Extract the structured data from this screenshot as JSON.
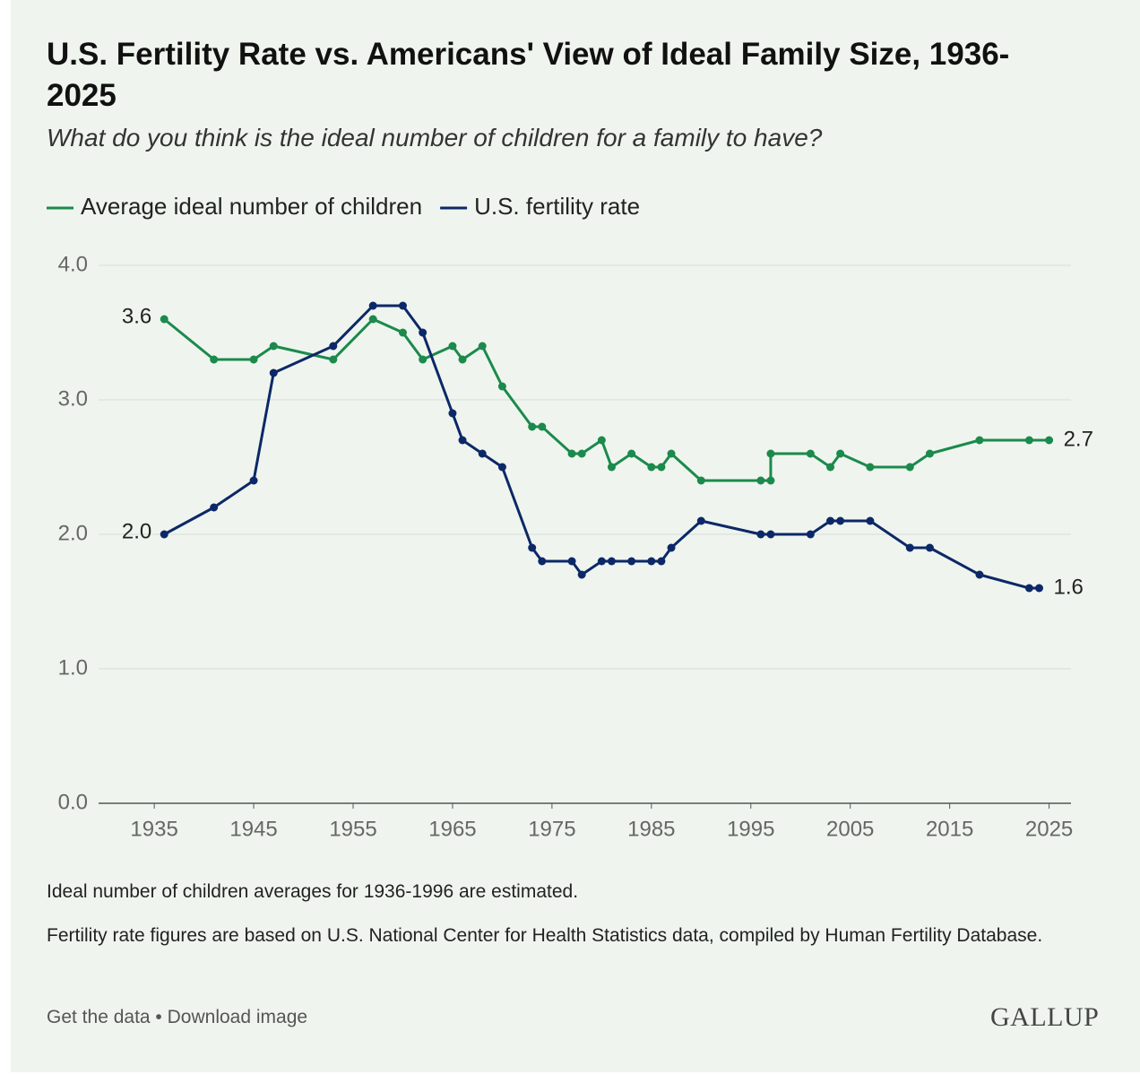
{
  "chart_data": {
    "type": "line",
    "title": "U.S. Fertility Rate vs. Americans' View of Ideal Family Size, 1936-2025",
    "subtitle": "What do you think is the ideal number of children for a family to have?",
    "series": [
      {
        "name": "Average ideal number of children",
        "color": "#1b8a4c",
        "x": [
          1936,
          1941,
          1945,
          1947,
          1953,
          1957,
          1960,
          1962,
          1965,
          1966,
          1968,
          1970,
          1973,
          1974,
          1977,
          1978,
          1980,
          1981,
          1983,
          1985,
          1986,
          1987,
          1990,
          1996,
          1997,
          1997,
          2001,
          2003,
          2004,
          2007,
          2011,
          2013,
          2018,
          2023,
          2025
        ],
        "values": [
          3.6,
          3.3,
          3.3,
          3.4,
          3.3,
          3.6,
          3.5,
          3.3,
          3.4,
          3.3,
          3.4,
          3.1,
          2.8,
          2.8,
          2.6,
          2.6,
          2.7,
          2.5,
          2.6,
          2.5,
          2.5,
          2.6,
          2.4,
          2.4,
          2.4,
          2.6,
          2.6,
          2.5,
          2.6,
          2.5,
          2.5,
          2.6,
          2.7,
          2.7,
          2.7
        ],
        "value_labels": [
          "3.6",
          null,
          null,
          null,
          null,
          null,
          null,
          null,
          null,
          null,
          null,
          null,
          null,
          null,
          null,
          null,
          null,
          null,
          null,
          null,
          null,
          null,
          null,
          null,
          null,
          null,
          null,
          null,
          null,
          null,
          null,
          null,
          null,
          null,
          "2.7"
        ]
      },
      {
        "name": "U.S. fertility rate",
        "color": "#0c2868",
        "x": [
          1936,
          1941,
          1945,
          1947,
          1953,
          1957,
          1960,
          1962,
          1965,
          1966,
          1968,
          1970,
          1973,
          1974,
          1977,
          1978,
          1980,
          1981,
          1983,
          1985,
          1986,
          1987,
          1990,
          1996,
          1997,
          2001,
          2003,
          2004,
          2007,
          2011,
          2013,
          2018,
          2023,
          2024
        ],
        "values": [
          2.0,
          2.2,
          2.4,
          3.2,
          3.4,
          3.7,
          3.7,
          3.5,
          2.9,
          2.7,
          2.6,
          2.5,
          1.9,
          1.8,
          1.8,
          1.7,
          1.8,
          1.8,
          1.8,
          1.8,
          1.8,
          1.9,
          2.1,
          2.0,
          2.0,
          2.0,
          2.1,
          2.1,
          2.1,
          1.9,
          1.9,
          1.7,
          1.6,
          1.6
        ],
        "value_labels": [
          "2.0",
          null,
          null,
          null,
          null,
          null,
          null,
          null,
          null,
          null,
          null,
          null,
          null,
          null,
          null,
          null,
          null,
          null,
          null,
          null,
          null,
          null,
          null,
          null,
          null,
          null,
          null,
          null,
          null,
          null,
          null,
          null,
          null,
          "1.6"
        ]
      }
    ],
    "xlim": [
      1929.4,
      2027.2
    ],
    "xticks": [
      1935,
      1945,
      1955,
      1965,
      1975,
      1985,
      1995,
      2005,
      2015,
      2025
    ],
    "ylim": [
      0,
      4
    ],
    "yticks": [
      {
        "value": 0,
        "label": "0.0"
      },
      {
        "value": 1,
        "label": "1.0"
      },
      {
        "value": 2,
        "label": "2.0"
      },
      {
        "value": 3,
        "label": "3.0"
      },
      {
        "value": 4,
        "label": "4.0"
      }
    ],
    "grid": true,
    "notes": [
      "Ideal number of children averages for 1936-1996 are estimated.",
      "Fertility rate figures are based on U.S. National Center for Health Statistics data, compiled by Human Fertility Database."
    ],
    "links": [
      "Get the data",
      "Download image"
    ],
    "source": "GALLUP"
  }
}
